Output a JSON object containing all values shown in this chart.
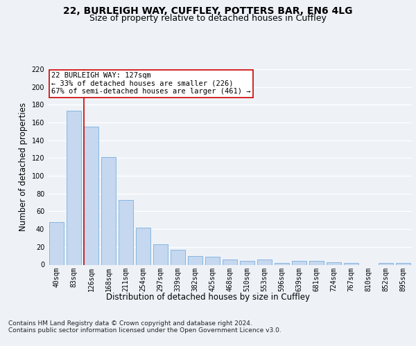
{
  "title_line1": "22, BURLEIGH WAY, CUFFLEY, POTTERS BAR, EN6 4LG",
  "title_line2": "Size of property relative to detached houses in Cuffley",
  "xlabel": "Distribution of detached houses by size in Cuffley",
  "ylabel": "Number of detached properties",
  "categories": [
    "40sqm",
    "83sqm",
    "126sqm",
    "168sqm",
    "211sqm",
    "254sqm",
    "297sqm",
    "339sqm",
    "382sqm",
    "425sqm",
    "468sqm",
    "510sqm",
    "553sqm",
    "596sqm",
    "639sqm",
    "681sqm",
    "724sqm",
    "767sqm",
    "810sqm",
    "852sqm",
    "895sqm"
  ],
  "values": [
    48,
    173,
    155,
    121,
    73,
    42,
    23,
    17,
    10,
    9,
    6,
    4,
    6,
    2,
    4,
    4,
    3,
    2,
    0,
    2,
    2
  ],
  "bar_color": "#c5d8ef",
  "bar_edge_color": "#7aaedc",
  "vline_color": "#cc0000",
  "annotation_text": "22 BURLEIGH WAY: 127sqm\n← 33% of detached houses are smaller (226)\n67% of semi-detached houses are larger (461) →",
  "annotation_box_color": "#ffffff",
  "annotation_box_edge": "#cc0000",
  "ylim": [
    0,
    220
  ],
  "yticks": [
    0,
    20,
    40,
    60,
    80,
    100,
    120,
    140,
    160,
    180,
    200,
    220
  ],
  "footer": "Contains HM Land Registry data © Crown copyright and database right 2024.\nContains public sector information licensed under the Open Government Licence v3.0.",
  "bg_color": "#eef2f7",
  "plot_bg_color": "#eef2f7",
  "grid_color": "#ffffff",
  "title_fontsize": 10,
  "subtitle_fontsize": 9,
  "axis_label_fontsize": 8.5,
  "tick_fontsize": 7,
  "footer_fontsize": 6.5,
  "annotation_fontsize": 7.5
}
